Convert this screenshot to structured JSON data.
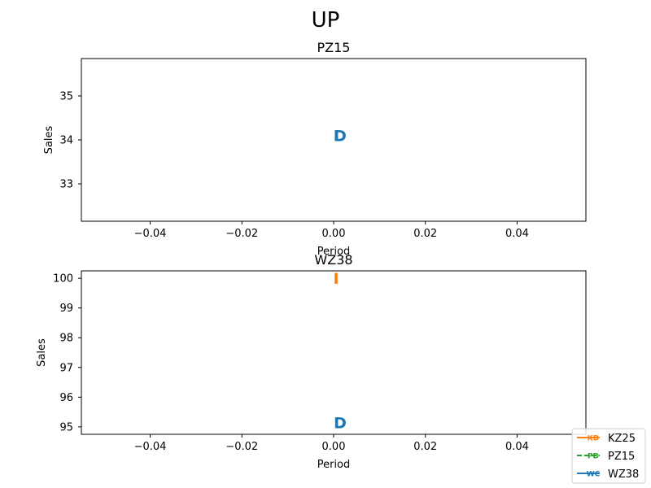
{
  "figure": {
    "title": "UP"
  },
  "chart_data": [
    {
      "type": "scatter",
      "title": "PZ15",
      "xlabel": "Period",
      "ylabel": "Sales",
      "xlim": [
        -0.055,
        0.055
      ],
      "ylim": [
        32.15,
        35.85
      ],
      "xticks": [
        -0.04,
        -0.02,
        0.0,
        0.02,
        0.04
      ],
      "xtick_labels": [
        "−0.04",
        "−0.02",
        "0.00",
        "0.02",
        "0.04"
      ],
      "yticks": [
        33,
        34,
        35
      ],
      "ytick_labels": [
        "33",
        "34",
        "35"
      ],
      "grid": false,
      "markers": [
        {
          "series": "KZ25",
          "glyph": "I",
          "color": "#ff7f0e",
          "x": 0.0,
          "y": 34.1
        },
        {
          "series": "WZ38",
          "glyph": "D",
          "color": "#1f77b4",
          "x": 0.0,
          "y": 34.1
        }
      ]
    },
    {
      "type": "scatter",
      "title": "WZ38",
      "xlabel": "Period",
      "ylabel": "Sales",
      "xlim": [
        -0.055,
        0.055
      ],
      "ylim": [
        94.75,
        100.25
      ],
      "xticks": [
        -0.04,
        -0.02,
        0.0,
        0.02,
        0.04
      ],
      "xtick_labels": [
        "−0.04",
        "−0.02",
        "0.00",
        "0.02",
        "0.04"
      ],
      "yticks": [
        95,
        96,
        97,
        98,
        99,
        100
      ],
      "ytick_labels": [
        "95",
        "96",
        "97",
        "98",
        "99",
        "100"
      ],
      "grid": false,
      "markers": [
        {
          "series": "KZ25",
          "glyph": "I",
          "color": "#ff7f0e",
          "x": 0.0,
          "y": 100.0
        },
        {
          "series": "WZ38",
          "glyph": "D",
          "color": "#1f77b4",
          "x": 0.0,
          "y": 95.15
        }
      ]
    }
  ],
  "legend": {
    "placement": "bottom-right",
    "entries": [
      {
        "name": "KZ25",
        "color": "#ff7f0e",
        "dash": "solid",
        "badge": "KD"
      },
      {
        "name": "PZ15",
        "color": "#2ca02c",
        "dash": "dashed",
        "badge": "PD"
      },
      {
        "name": "WZ38",
        "color": "#1f77b4",
        "dash": "solid",
        "badge": "WC"
      }
    ]
  }
}
